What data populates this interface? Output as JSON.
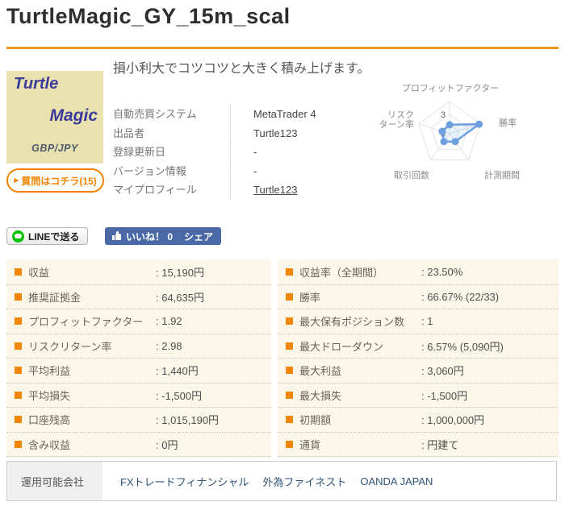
{
  "page": {
    "title": "TurtleMagic_GY_15m_scal"
  },
  "product": {
    "logo": {
      "line1": "Turtle",
      "line2": "Magic",
      "pair": "GBP/JPY"
    },
    "question_arrow": "▶",
    "question_button": "質問はコチラ(15)",
    "description": "損小利大でコツコツと大きく積み上げます。",
    "details": [
      {
        "label": "自動売買システム",
        "value": "MetaTrader 4",
        "link": false
      },
      {
        "label": "出品者",
        "value": "Turtle123",
        "link": false
      },
      {
        "label": "登録更新日",
        "value": "-",
        "link": false
      },
      {
        "label": "バージョン情報",
        "value": "-",
        "link": false
      },
      {
        "label": "マイプロフィール",
        "value": "Turtle123",
        "link": true
      }
    ]
  },
  "chart_data": {
    "type": "radar",
    "axes": [
      "プロフィットファクター",
      "勝率",
      "計測期間",
      "取引回数",
      "リスクターン率"
    ],
    "axes_display": [
      [
        "プロフィットファクター"
      ],
      [
        "勝率"
      ],
      [
        "計測期間"
      ],
      [
        "取引回数"
      ],
      [
        "リスク",
        "ターン率"
      ]
    ],
    "values": [
      1.4,
      4.8,
      1.5,
      1.5,
      1.2
    ],
    "scale": {
      "min": 0,
      "max": 5,
      "ticks": [
        {
          "label": "3",
          "value": 3
        },
        {
          "label": "0",
          "value": 0
        }
      ]
    },
    "color": "#6d9ee0",
    "fill": "rgba(109,158,224,0.15)",
    "grid_color": "#e3e3e3",
    "label_color": "#8a8a8a"
  },
  "share": {
    "line_button": "LINEで送る",
    "like_button": "いいね！ 0",
    "share_button": "シェア"
  },
  "stats": {
    "left": [
      {
        "label": "収益",
        "value": ": 15,190円"
      },
      {
        "label": "推奨証拠金",
        "value": ": 64,635円"
      },
      {
        "label": "プロフィットファクター",
        "value": ": 1.92"
      },
      {
        "label": "リスクリターン率",
        "value": ": 2.98"
      },
      {
        "label": "平均利益",
        "value": ": 1,440円"
      },
      {
        "label": "平均損失",
        "value": ": -1,500円"
      },
      {
        "label": "口座残高",
        "value": ": 1,015,190円"
      },
      {
        "label": "含み収益",
        "value": ": 0円"
      }
    ],
    "right": [
      {
        "label": "収益率（全期間）",
        "value": ": 23.50%"
      },
      {
        "label": "勝率",
        "value": ": 66.67% (22/33)"
      },
      {
        "label": "最大保有ポジション数",
        "value": ": 1"
      },
      {
        "label": "最大ドローダウン",
        "value": ": 6.57% (5,090円)"
      },
      {
        "label": "最大利益",
        "value": ": 3,060円"
      },
      {
        "label": "最大損失",
        "value": ": -1,500円"
      },
      {
        "label": "初期額",
        "value": ": 1,000,000円"
      },
      {
        "label": "通貨",
        "value": ": 円建て"
      }
    ]
  },
  "companies": {
    "label": "運用可能会社",
    "items": [
      "FXトレードフィナンシャル",
      "外為ファイネスト",
      "OANDA JAPAN"
    ]
  },
  "colors": {
    "accent_orange": "#f0941f",
    "bullet_orange": "#f28705",
    "stats_bg": "#faf7e9",
    "fb_blue": "#4b69a7",
    "line_green": "#00c300",
    "radar_blue": "#6d9ee0",
    "logo_bg": "#e9e2ae",
    "logo_text": "#3b3b9e"
  }
}
